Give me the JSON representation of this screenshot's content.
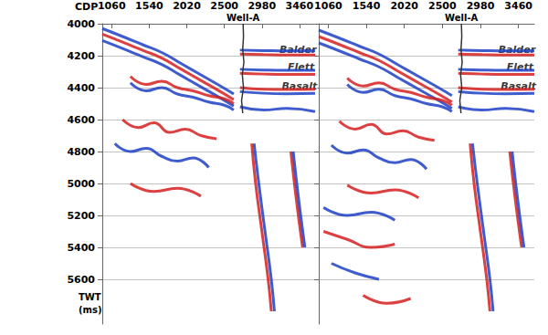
{
  "chart_data": [
    {
      "type": "line",
      "xlabel": "CDP",
      "ylabel": "TWT\n(ms)",
      "xlim": [
        940,
        3660
      ],
      "xticks": [
        1060,
        1540,
        2020,
        2500,
        2980,
        3460
      ],
      "ylim": [
        4000,
        5880
      ],
      "yticks": [
        4000,
        4200,
        4400,
        4600,
        4800,
        5000,
        5200,
        5400,
        5600
      ],
      "grid": true,
      "tick_labels": true,
      "well": {
        "label": "Well-A",
        "color": "#333333",
        "x": [
          2740,
          2745,
          2735,
          2750,
          2730,
          2745,
          2720,
          2735
        ],
        "values": [
          4000,
          4080,
          4160,
          4240,
          4320,
          4400,
          4480,
          4560
        ]
      },
      "annotations": [
        {
          "text": "Balder",
          "x": 3440,
          "y": 4160
        },
        {
          "text": "Flett",
          "x": 3480,
          "y": 4270
        },
        {
          "text": "Basalt",
          "x": 3460,
          "y": 4390
        }
      ],
      "series": [
        {
          "color": "#1c3fc4",
          "x": [
            940,
            1200,
            1450,
            1700,
            1950,
            2200,
            2450,
            2620
          ],
          "values": [
            4030,
            4080,
            4130,
            4180,
            4250,
            4320,
            4390,
            4440
          ]
        },
        {
          "color": "#d61e1e",
          "x": [
            940,
            1200,
            1450,
            1700,
            1950,
            2200,
            2450,
            2620
          ],
          "values": [
            4065,
            4115,
            4165,
            4215,
            4285,
            4355,
            4425,
            4475
          ]
        },
        {
          "color": "#1c3fc4",
          "x": [
            940,
            1200,
            1450,
            1700,
            1950,
            2200,
            2450,
            2620
          ],
          "values": [
            4105,
            4155,
            4205,
            4255,
            4325,
            4395,
            4465,
            4515
          ]
        },
        {
          "color": "#d61e1e",
          "x": [
            1300,
            1500,
            1700,
            1900,
            2100,
            2300,
            2500,
            2620
          ],
          "values": [
            4330,
            4380,
            4360,
            4400,
            4420,
            4450,
            4470,
            4500
          ]
        },
        {
          "color": "#1c3fc4",
          "x": [
            1300,
            1500,
            1700,
            1900,
            2100,
            2300,
            2500,
            2620
          ],
          "values": [
            4370,
            4420,
            4400,
            4440,
            4460,
            4490,
            4510,
            4540
          ]
        },
        {
          "color": "#d61e1e",
          "x": [
            1200,
            1400,
            1600,
            1800,
            2000,
            2200,
            2400
          ],
          "values": [
            4600,
            4650,
            4620,
            4680,
            4660,
            4700,
            4720
          ]
        },
        {
          "color": "#1c3fc4",
          "x": [
            1100,
            1300,
            1500,
            1700,
            1900,
            2100,
            2300
          ],
          "values": [
            4750,
            4800,
            4780,
            4830,
            4860,
            4840,
            4900
          ]
        },
        {
          "color": "#d61e1e",
          "x": [
            1300,
            1600,
            1900,
            2200
          ],
          "values": [
            5000,
            5050,
            5030,
            5080
          ]
        },
        {
          "color": "#1c3fc4",
          "x": [
            2700,
            3000,
            3300,
            3660
          ],
          "values": [
            4165,
            4168,
            4170,
            4170
          ]
        },
        {
          "color": "#d61e1e",
          "x": [
            2700,
            3000,
            3300,
            3660
          ],
          "values": [
            4190,
            4193,
            4195,
            4195
          ]
        },
        {
          "color": "#1c3fc4",
          "x": [
            2700,
            3000,
            3300,
            3660
          ],
          "values": [
            4285,
            4290,
            4292,
            4292
          ]
        },
        {
          "color": "#d61e1e",
          "x": [
            2700,
            3000,
            3300,
            3660
          ],
          "values": [
            4310,
            4315,
            4317,
            4317
          ]
        },
        {
          "color": "#d61e1e",
          "x": [
            2700,
            3000,
            3300,
            3660
          ],
          "values": [
            4400,
            4410,
            4412,
            4410
          ]
        },
        {
          "color": "#1c3fc4",
          "x": [
            2700,
            3000,
            3300,
            3660
          ],
          "values": [
            4425,
            4435,
            4438,
            4436
          ]
        },
        {
          "color": "#1c3fc4",
          "x": [
            2700,
            3000,
            3300,
            3660
          ],
          "values": [
            4520,
            4540,
            4530,
            4550
          ]
        },
        {
          "color": "#d61e1e",
          "x": [
            2850,
            2900,
            2980,
            3060,
            3100
          ],
          "values": [
            4750,
            5000,
            5300,
            5600,
            5800
          ]
        },
        {
          "color": "#1c3fc4",
          "x": [
            2880,
            2940,
            3020,
            3100,
            3140
          ],
          "values": [
            4750,
            5000,
            5300,
            5600,
            5800
          ]
        },
        {
          "color": "#d61e1e",
          "x": [
            3350,
            3420,
            3500
          ],
          "values": [
            4800,
            5100,
            5400
          ]
        },
        {
          "color": "#1c3fc4",
          "x": [
            3380,
            3450,
            3530
          ],
          "values": [
            4800,
            5100,
            5400
          ]
        }
      ]
    },
    {
      "type": "line",
      "xlim": [
        940,
        3660
      ],
      "xticks": [
        1060,
        1540,
        2020,
        2500,
        2980,
        3460
      ],
      "ylim": [
        4000,
        5880
      ],
      "yticks": [
        4000,
        4200,
        4400,
        4600,
        4800,
        5000,
        5200,
        5400,
        5600
      ],
      "grid": true,
      "tick_labels": "x",
      "well": {
        "label": "Well-A",
        "color": "#333333",
        "x": [
          2740,
          2745,
          2735,
          2750,
          2730,
          2745,
          2720,
          2735
        ],
        "values": [
          4000,
          4080,
          4160,
          4240,
          4320,
          4400,
          4480,
          4560
        ]
      },
      "annotations": [
        {
          "text": "Balder",
          "x": 3440,
          "y": 4160
        },
        {
          "text": "Flett",
          "x": 3480,
          "y": 4270
        },
        {
          "text": "Basalt",
          "x": 3460,
          "y": 4390
        }
      ],
      "series": [
        {
          "color": "#1c3fc4",
          "x": [
            940,
            1200,
            1450,
            1700,
            1950,
            2200,
            2450,
            2620
          ],
          "values": [
            4040,
            4090,
            4140,
            4190,
            4260,
            4330,
            4400,
            4450
          ]
        },
        {
          "color": "#d61e1e",
          "x": [
            940,
            1200,
            1450,
            1700,
            1950,
            2200,
            2450,
            2620
          ],
          "values": [
            4080,
            4130,
            4180,
            4230,
            4300,
            4370,
            4440,
            4490
          ]
        },
        {
          "color": "#1c3fc4",
          "x": [
            940,
            1200,
            1450,
            1700,
            1950,
            2200,
            2450,
            2620
          ],
          "values": [
            4120,
            4170,
            4220,
            4270,
            4340,
            4410,
            4480,
            4530
          ]
        },
        {
          "color": "#d61e1e",
          "x": [
            1300,
            1500,
            1700,
            1900,
            2100,
            2300,
            2500,
            2620
          ],
          "values": [
            4340,
            4390,
            4370,
            4410,
            4430,
            4460,
            4480,
            4510
          ]
        },
        {
          "color": "#1c3fc4",
          "x": [
            1300,
            1500,
            1700,
            1900,
            2100,
            2300,
            2500,
            2620
          ],
          "values": [
            4380,
            4430,
            4410,
            4450,
            4470,
            4500,
            4520,
            4550
          ]
        },
        {
          "color": "#d61e1e",
          "x": [
            1200,
            1400,
            1600,
            1800,
            2000,
            2200,
            2400
          ],
          "values": [
            4610,
            4660,
            4630,
            4690,
            4670,
            4710,
            4730
          ]
        },
        {
          "color": "#1c3fc4",
          "x": [
            1100,
            1300,
            1500,
            1700,
            1900,
            2100,
            2300
          ],
          "values": [
            4760,
            4810,
            4790,
            4840,
            4870,
            4850,
            4910
          ]
        },
        {
          "color": "#d61e1e",
          "x": [
            1300,
            1600,
            1900,
            2200
          ],
          "values": [
            5010,
            5060,
            5040,
            5090
          ]
        },
        {
          "color": "#1c3fc4",
          "x": [
            1000,
            1300,
            1600,
            1900
          ],
          "values": [
            5150,
            5200,
            5180,
            5230
          ]
        },
        {
          "color": "#d61e1e",
          "x": [
            1000,
            1300,
            1600,
            1900
          ],
          "values": [
            5300,
            5350,
            5400,
            5380
          ]
        },
        {
          "color": "#1c3fc4",
          "x": [
            1100,
            1400,
            1700
          ],
          "values": [
            5500,
            5560,
            5600
          ]
        },
        {
          "color": "#d61e1e",
          "x": [
            1500,
            1800,
            2100
          ],
          "values": [
            5700,
            5750,
            5720
          ]
        },
        {
          "color": "#1c3fc4",
          "x": [
            2700,
            3000,
            3300,
            3660
          ],
          "values": [
            4165,
            4168,
            4170,
            4170
          ]
        },
        {
          "color": "#d61e1e",
          "x": [
            2700,
            3000,
            3300,
            3660
          ],
          "values": [
            4190,
            4193,
            4195,
            4195
          ]
        },
        {
          "color": "#1c3fc4",
          "x": [
            2700,
            3000,
            3300,
            3660
          ],
          "values": [
            4285,
            4290,
            4292,
            4292
          ]
        },
        {
          "color": "#d61e1e",
          "x": [
            2700,
            3000,
            3300,
            3660
          ],
          "values": [
            4310,
            4315,
            4317,
            4317
          ]
        },
        {
          "color": "#d61e1e",
          "x": [
            2700,
            3000,
            3300,
            3660
          ],
          "values": [
            4400,
            4410,
            4412,
            4410
          ]
        },
        {
          "color": "#1c3fc4",
          "x": [
            2700,
            3000,
            3300,
            3660
          ],
          "values": [
            4425,
            4435,
            4438,
            4436
          ]
        },
        {
          "color": "#1c3fc4",
          "x": [
            2700,
            3000,
            3300,
            3660
          ],
          "values": [
            4520,
            4540,
            4530,
            4550
          ]
        },
        {
          "color": "#d61e1e",
          "x": [
            2850,
            2900,
            2980,
            3060,
            3100
          ],
          "values": [
            4750,
            5000,
            5300,
            5600,
            5800
          ]
        },
        {
          "color": "#1c3fc4",
          "x": [
            2880,
            2940,
            3020,
            3100,
            3140
          ],
          "values": [
            4750,
            5000,
            5300,
            5600,
            5800
          ]
        },
        {
          "color": "#d61e1e",
          "x": [
            3350,
            3420,
            3500
          ],
          "values": [
            4800,
            5100,
            5400
          ]
        },
        {
          "color": "#1c3fc4",
          "x": [
            3380,
            3450,
            3530
          ],
          "values": [
            4800,
            5100,
            5400
          ]
        }
      ]
    }
  ]
}
